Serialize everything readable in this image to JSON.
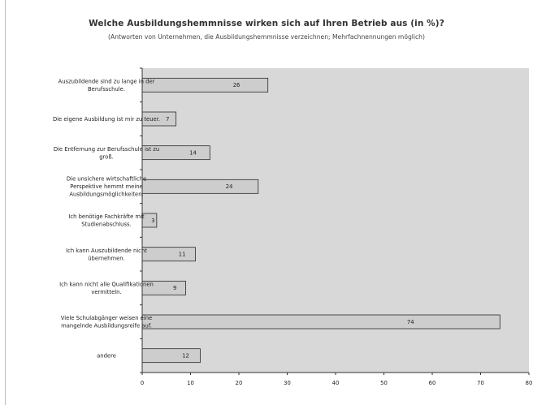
{
  "chart_data": {
    "type": "bar",
    "orientation": "horizontal",
    "title": "Welche Ausbildungshemmnisse wirken sich auf Ihren Betrieb aus (in %)?",
    "subtitle": "(Antworten von Unternehmen, die Ausbildungshemmnisse verzeichnen; Mehrfachnennungen möglich)",
    "categories": [
      [
        "Auszubildende sind zu lange in der",
        "Berufsschule."
      ],
      [
        "Die eigene Ausbildung ist mir zu teuer."
      ],
      [
        "Die Entfernung zur Berufsschule ist zu",
        "groß."
      ],
      [
        "Die unsichere wirtschaftliche",
        "Perspektive hemmt meine",
        "Ausbildungsmöglichkeiten."
      ],
      [
        "Ich benötige Fachkräfte mit",
        "Studienabschluss."
      ],
      [
        "Ich kann Auszubildende nicht",
        "übernehmen."
      ],
      [
        "Ich kann nicht alle Qualifikationen",
        "vermitteln."
      ],
      [
        "Viele Schulabgänger weisen eine",
        "mangelnde Ausbildungsreife auf."
      ],
      [
        "andere"
      ]
    ],
    "values": [
      26,
      7,
      14,
      24,
      3,
      11,
      9,
      74,
      12
    ],
    "xlim": [
      0,
      80
    ],
    "xticks": [
      "0",
      "10",
      "20",
      "30",
      "40",
      "50",
      "60",
      "70",
      "80"
    ],
    "grid": false,
    "colors": {
      "plot_background": "#d8d8d8",
      "bar": "#cdcdcd",
      "bar_stroke": "#2a2a2a",
      "axis": "#333333"
    }
  }
}
